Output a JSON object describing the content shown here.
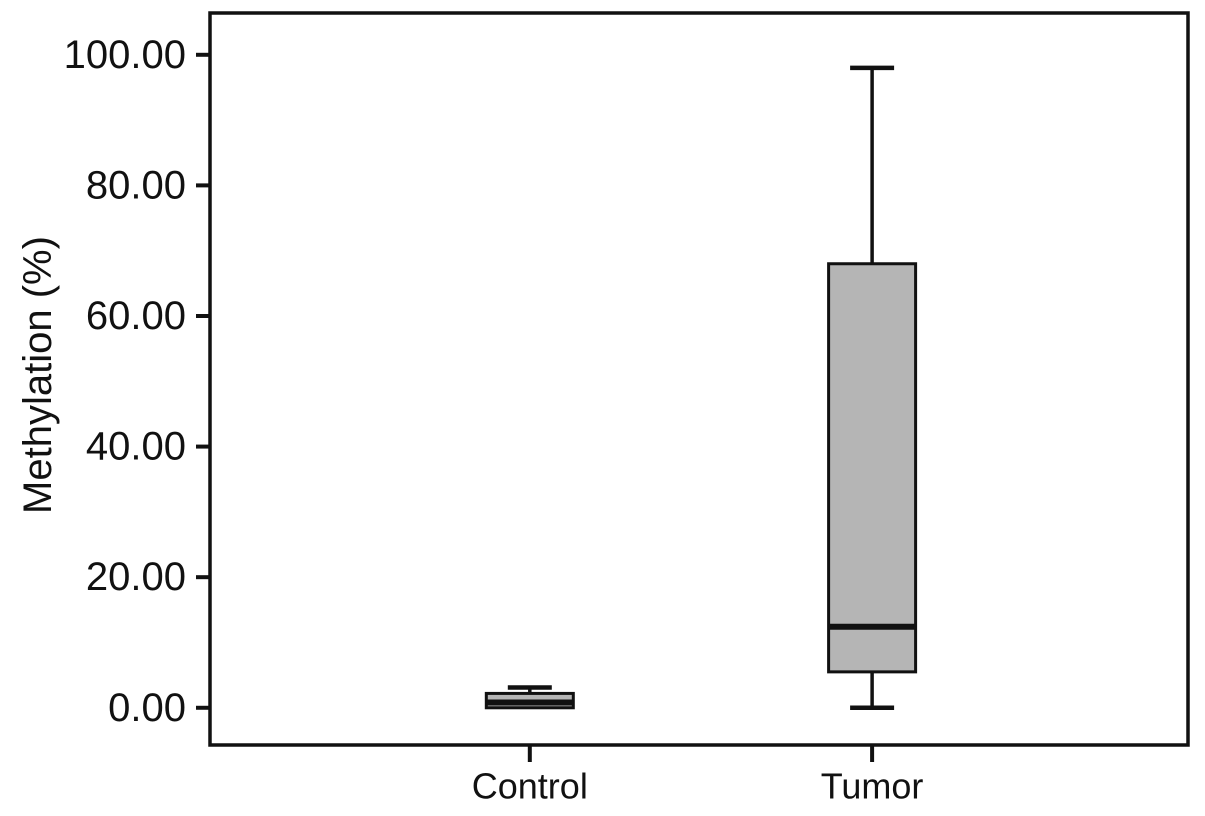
{
  "figure": {
    "background": "#ffffff"
  },
  "chart_data": {
    "type": "boxplot",
    "title": "",
    "xlabel": "",
    "ylabel": "Methylation (%)",
    "categories": [
      "Control",
      "Tumor"
    ],
    "y_ticks": [
      {
        "value": 0,
        "label": "0.00"
      },
      {
        "value": 20,
        "label": "20.00"
      },
      {
        "value": 40,
        "label": "40.00"
      },
      {
        "value": 60,
        "label": "60.00"
      },
      {
        "value": 80,
        "label": "80.00"
      },
      {
        "value": 100,
        "label": "100.00"
      }
    ],
    "ylim": [
      -5.7,
      106.4
    ],
    "grid": false,
    "legend": false,
    "series": [
      {
        "name": "Control",
        "min": 0.0,
        "q1": 0.0,
        "median": 0.8,
        "q3": 2.2,
        "max": 3.1
      },
      {
        "name": "Tumor",
        "min": 0.0,
        "q1": 5.5,
        "median": 12.4,
        "q3": 68.0,
        "max": 98.0
      }
    ],
    "colors": {
      "box_fill": "#b5b5b5",
      "line": "#111111",
      "text": "#111111"
    }
  }
}
